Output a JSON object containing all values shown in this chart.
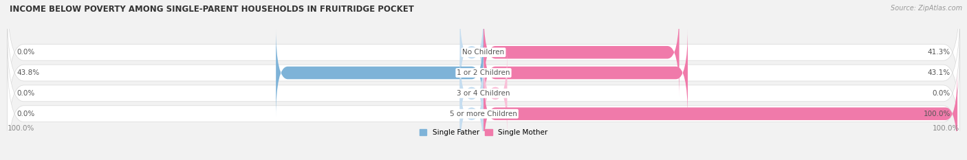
{
  "title": "INCOME BELOW POVERTY AMONG SINGLE-PARENT HOUSEHOLDS IN FRUITRIDGE POCKET",
  "source": "Source: ZipAtlas.com",
  "categories": [
    "No Children",
    "1 or 2 Children",
    "3 or 4 Children",
    "5 or more Children"
  ],
  "single_father": [
    0.0,
    43.8,
    0.0,
    0.0
  ],
  "single_mother": [
    41.3,
    43.1,
    0.0,
    100.0
  ],
  "father_color": "#7eb3d8",
  "mother_color": "#f07aaa",
  "father_color_light": "#c5ddf0",
  "mother_color_light": "#f9c0d8",
  "bg_color": "#f2f2f2",
  "row_bg_color": "#ffffff",
  "row_shadow_color": "#d8d8d8",
  "title_fontsize": 8.5,
  "label_fontsize": 7.5,
  "source_fontsize": 7.0,
  "cat_fontsize": 7.5,
  "axis_label": "100.0%",
  "max_value": 100.0,
  "stub_value": 5.0
}
